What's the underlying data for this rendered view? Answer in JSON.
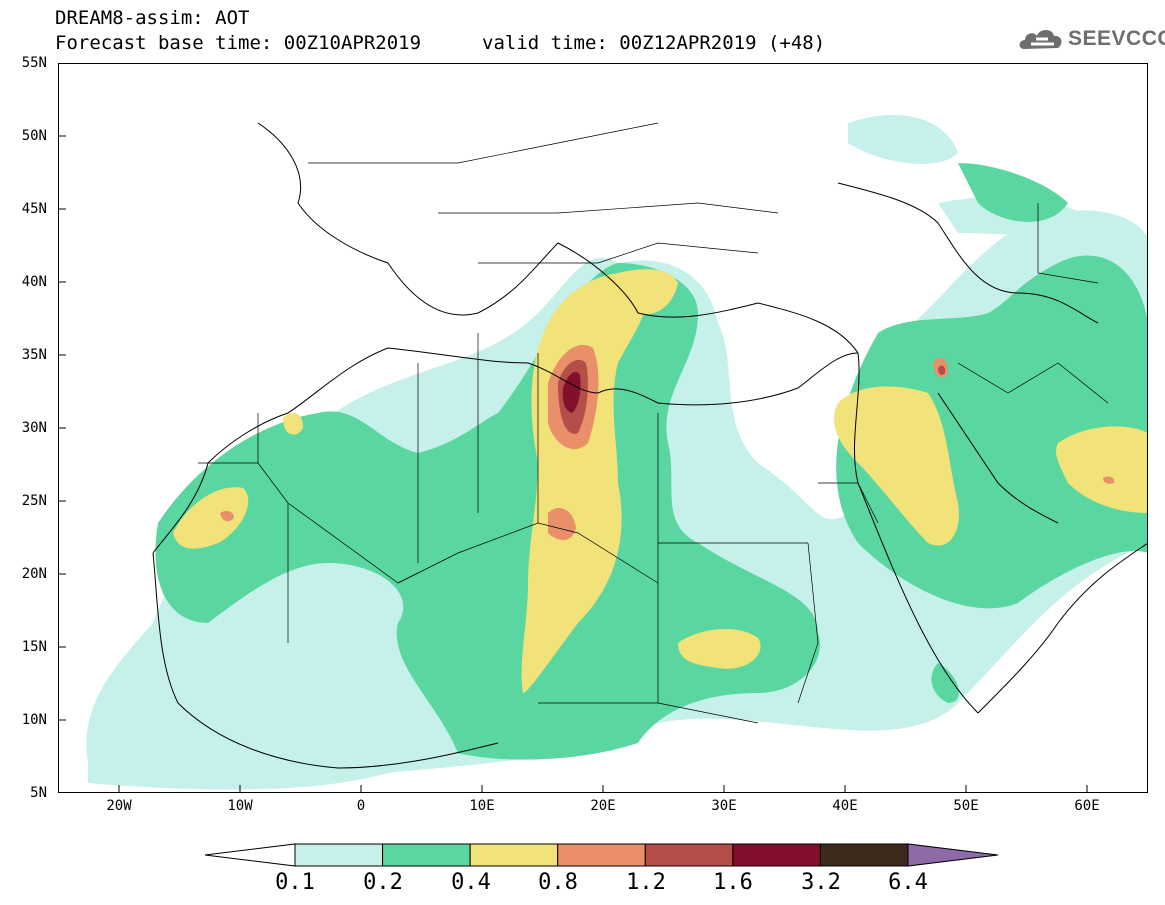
{
  "header": {
    "title_line1": "DREAM8-assim: AOT",
    "title_line2": "Forecast base time: 00Z10APR2019",
    "title_line3": "valid time: 00Z12APR2019 (+48)"
  },
  "logo": {
    "text": "SEEVCCC",
    "icon": "cloud-icon"
  },
  "map": {
    "lat_labels": [
      "55N",
      "50N",
      "45N",
      "40N",
      "35N",
      "30N",
      "25N",
      "20N",
      "15N",
      "10N",
      "5N"
    ],
    "lon_labels": [
      "20W",
      "10W",
      "0",
      "10E",
      "20E",
      "30E",
      "40E",
      "50E",
      "60E"
    ],
    "lat_range": [
      5,
      55
    ],
    "lon_range": [
      -25,
      65
    ]
  },
  "colorbar": {
    "labels": [
      "0.1",
      "0.2",
      "0.4",
      "0.8",
      "1.2",
      "1.6",
      "3.2",
      "6.4"
    ],
    "colors": [
      "#c6f0ea",
      "#5ad6a0",
      "#f2e27a",
      "#e9906a",
      "#b34e48",
      "#820f2c",
      "#3d2a1c",
      "#8e6aa8"
    ],
    "under_color": "#ffffff"
  },
  "colors": {
    "level1": "#c6f0ea",
    "level2": "#5ad6a0",
    "level3": "#f2e27a",
    "level4": "#e9906a",
    "level5": "#b34e48",
    "level6": "#820f2c"
  }
}
